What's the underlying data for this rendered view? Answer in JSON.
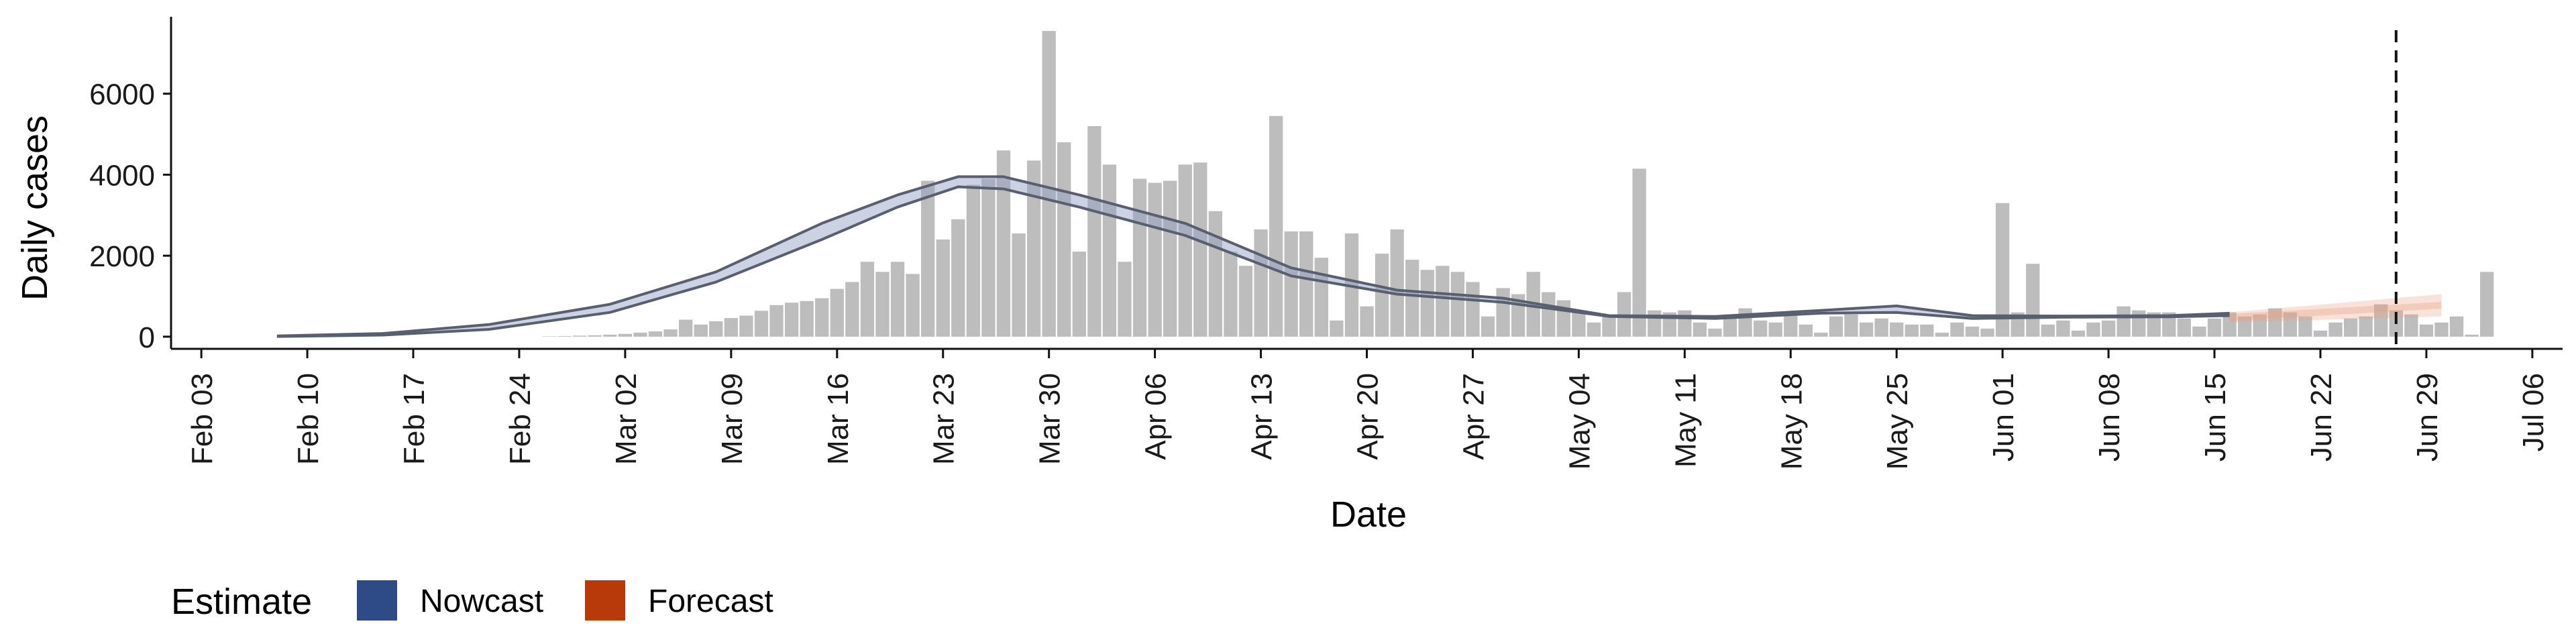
{
  "chart_data": {
    "type": "bar",
    "ylabel": "Daily cases",
    "xlabel": "Date",
    "ylim": [
      -300,
      7900
    ],
    "grid": false,
    "legend": {
      "title": "Estimate",
      "placement": "bottom-left",
      "items": [
        {
          "name": "Nowcast",
          "color": "#2f4b87"
        },
        {
          "name": "Forecast",
          "color": "#b83a0b"
        }
      ]
    },
    "y_ticks": [
      0,
      2000,
      4000,
      6000
    ],
    "y_tick_labels": [
      "0",
      "2000",
      "4000",
      "6000"
    ],
    "x_ticks": [
      "2020-02-03",
      "2020-02-10",
      "2020-02-17",
      "2020-02-24",
      "2020-03-02",
      "2020-03-09",
      "2020-03-16",
      "2020-03-23",
      "2020-03-30",
      "2020-04-06",
      "2020-04-13",
      "2020-04-20",
      "2020-04-27",
      "2020-05-04",
      "2020-05-11",
      "2020-05-18",
      "2020-05-25",
      "2020-06-01",
      "2020-06-08",
      "2020-06-15",
      "2020-06-22",
      "2020-06-29",
      "2020-07-06"
    ],
    "x_tick_labels": [
      "Feb 03",
      "Feb 10",
      "Feb 17",
      "Feb 24",
      "Mar 02",
      "Mar 09",
      "Mar 16",
      "Mar 23",
      "Mar 30",
      "Apr 06",
      "Apr 13",
      "Apr 20",
      "Apr 27",
      "May 04",
      "May 11",
      "May 18",
      "May 25",
      "Jun 01",
      "Jun 08",
      "Jun 15",
      "Jun 22",
      "Jun 29",
      "Jul 06"
    ],
    "xlim": [
      "2020-02-01",
      "2020-07-08"
    ],
    "bars_start_date": "2020-02-26",
    "bar_values": [
      10,
      15,
      25,
      35,
      50,
      70,
      100,
      130,
      180,
      420,
      300,
      380,
      460,
      520,
      640,
      780,
      840,
      880,
      950,
      1180,
      1350,
      1850,
      1600,
      1850,
      1550,
      3850,
      2400,
      2900,
      3750,
      3900,
      4600,
      2550,
      4350,
      7550,
      4800,
      2100,
      5200,
      4250,
      1850,
      3900,
      3800,
      3850,
      4250,
      4300,
      3100,
      2100,
      1750,
      2650,
      5450,
      2600,
      2600,
      1950,
      400,
      2550,
      750,
      2050,
      2650,
      1900,
      1650,
      1750,
      1600,
      1350,
      500,
      1200,
      1050,
      1600,
      1100,
      900,
      650,
      350,
      550,
      1100,
      4150,
      650,
      600,
      650,
      350,
      200,
      550,
      700,
      400,
      350,
      600,
      300,
      100,
      500,
      550,
      350,
      450,
      350,
      300,
      300,
      100,
      350,
      250,
      200,
      3300,
      600,
      1800,
      300,
      400,
      150,
      350,
      400,
      750,
      650,
      600,
      600,
      450,
      250,
      450,
      600,
      500,
      550,
      700,
      600,
      500,
      150,
      350,
      450,
      500,
      800,
      650,
      550,
      300,
      350,
      500,
      50,
      1600
    ],
    "bar_color": "#bdbdbd",
    "nowcast_lines": [
      {
        "name": "",
        "points": [
          [
            "2020-02-08",
            5
          ],
          [
            "2020-02-15",
            40
          ],
          [
            "2020-02-22",
            180
          ],
          [
            "2020-03-01",
            600
          ],
          [
            "2020-03-08",
            1350
          ],
          [
            "2020-03-15",
            2400
          ],
          [
            "2020-03-20",
            3200
          ],
          [
            "2020-03-24",
            3700
          ],
          [
            "2020-03-27",
            3650
          ],
          [
            "2020-04-01",
            3200
          ],
          [
            "2020-04-08",
            2500
          ],
          [
            "2020-04-15",
            1500
          ],
          [
            "2020-04-22",
            1050
          ],
          [
            "2020-04-29",
            850
          ],
          [
            "2020-05-06",
            500
          ],
          [
            "2020-05-13",
            450
          ],
          [
            "2020-05-20",
            580
          ],
          [
            "2020-05-25",
            600
          ],
          [
            "2020-05-30",
            450
          ],
          [
            "2020-06-05",
            480
          ],
          [
            "2020-06-12",
            490
          ],
          [
            "2020-06-16",
            520
          ]
        ]
      },
      {
        "name": "",
        "points": [
          [
            "2020-02-08",
            20
          ],
          [
            "2020-02-15",
            80
          ],
          [
            "2020-02-22",
            300
          ],
          [
            "2020-03-01",
            800
          ],
          [
            "2020-03-08",
            1600
          ],
          [
            "2020-03-15",
            2800
          ],
          [
            "2020-03-20",
            3500
          ],
          [
            "2020-03-24",
            3950
          ],
          [
            "2020-03-27",
            3950
          ],
          [
            "2020-04-01",
            3500
          ],
          [
            "2020-04-08",
            2800
          ],
          [
            "2020-04-15",
            1700
          ],
          [
            "2020-04-22",
            1150
          ],
          [
            "2020-04-29",
            950
          ],
          [
            "2020-05-06",
            520
          ],
          [
            "2020-05-13",
            500
          ],
          [
            "2020-05-20",
            650
          ],
          [
            "2020-05-25",
            760
          ],
          [
            "2020-05-30",
            520
          ],
          [
            "2020-06-05",
            510
          ],
          [
            "2020-06-12",
            520
          ],
          [
            "2020-06-16",
            580
          ]
        ]
      }
    ],
    "nowcast_band_color": "#8d9cc4",
    "forecast_band": {
      "start": "2020-06-16",
      "end": "2020-06-30",
      "lower": [
        350,
        500
      ],
      "upper": [
        600,
        1050
      ]
    },
    "forecast_band_color": "#e9a080",
    "reference_date": "2020-06-27"
  }
}
